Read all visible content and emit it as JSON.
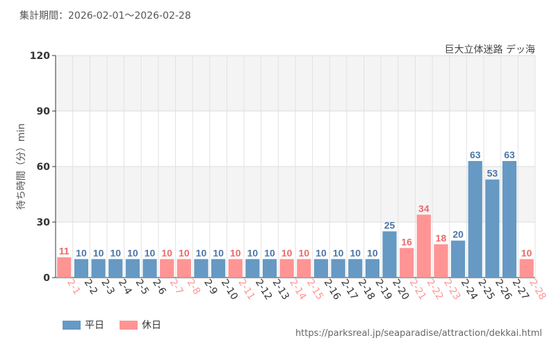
{
  "header": {
    "period_label": "集計期間：2026-02-01～2026-02-28"
  },
  "footer": {
    "url": "https://parksreal.jp/seaparadise/attraction/dekkai.html"
  },
  "legend": [
    {
      "label": "平日",
      "color": "#6699c3"
    },
    {
      "label": "休日",
      "color": "#ff9494"
    }
  ],
  "colors": {
    "weekday": "#6699c3",
    "holiday": "#ff9494",
    "weekday_text": "#4a76a8",
    "holiday_text": "#e86a6a"
  },
  "chart_data": {
    "type": "bar",
    "title": "巨大立体迷路 デッ海",
    "ylabel": "待ち時間（分）min",
    "xlabel": "",
    "ylim": [
      0,
      120
    ],
    "yticks": [
      0,
      30,
      60,
      90,
      120
    ],
    "categories": [
      "2-1",
      "2-2",
      "2-3",
      "2-4",
      "2-5",
      "2-6",
      "2-7",
      "2-8",
      "2-9",
      "2-10",
      "2-11",
      "2-12",
      "2-13",
      "2-14",
      "2-15",
      "2-16",
      "2-17",
      "2-18",
      "2-19",
      "2-20",
      "2-21",
      "2-22",
      "2-23",
      "2-24",
      "2-25",
      "2-26",
      "2-27",
      "2-28"
    ],
    "values": [
      11,
      10,
      10,
      10,
      10,
      10,
      10,
      10,
      10,
      10,
      10,
      10,
      10,
      10,
      10,
      10,
      10,
      10,
      10,
      25,
      16,
      34,
      18,
      20,
      63,
      53,
      63,
      10
    ],
    "day_type": [
      "休日",
      "平日",
      "平日",
      "平日",
      "平日",
      "平日",
      "休日",
      "休日",
      "平日",
      "平日",
      "休日",
      "平日",
      "平日",
      "休日",
      "休日",
      "平日",
      "平日",
      "平日",
      "平日",
      "平日",
      "休日",
      "休日",
      "休日",
      "平日",
      "平日",
      "平日",
      "平日",
      "休日"
    ]
  }
}
